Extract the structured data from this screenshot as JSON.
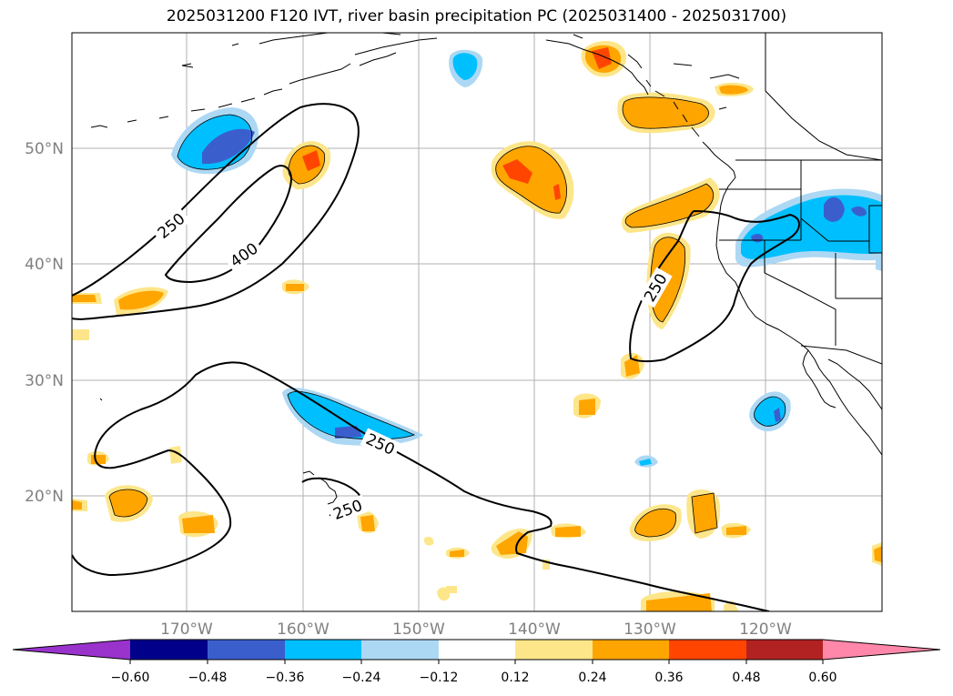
{
  "title": "2025031200 F120 IVT, river basin precipitation PC (2025031400 - 2025031700)",
  "map": {
    "lon_ticks": [
      "170°W",
      "160°W",
      "150°W",
      "140°W",
      "130°W",
      "120°W"
    ],
    "lat_ticks": [
      "50°N",
      "40°N",
      "30°N",
      "20°N"
    ],
    "contour_labels": [
      "250",
      "400",
      "250",
      "250",
      "250"
    ]
  },
  "colorbar": {
    "colors": [
      "#9933cc",
      "#00008b",
      "#3a5fcd",
      "#00bfff",
      "#add8f4",
      "#ffffff",
      "#fde68a",
      "#ffa500",
      "#ff4500",
      "#b22222",
      "#ff88aa"
    ],
    "tick_labels": [
      "−0.60",
      "−0.48",
      "−0.36",
      "−0.24",
      "−0.12",
      "0.12",
      "0.24",
      "0.36",
      "0.48",
      "0.60"
    ]
  }
}
